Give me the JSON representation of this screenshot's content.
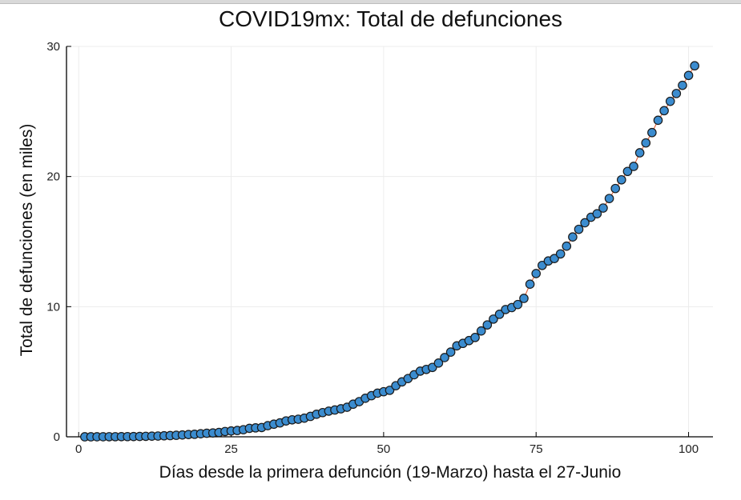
{
  "chart_data": {
    "type": "scatter",
    "title": "COVID19mx: Total de defunciones",
    "xlabel": "Días desde la primera defunción (19-Marzo) hasta el 27-Junio",
    "ylabel": "Total de defunciones (en miles)",
    "xlim": [
      -2,
      104
    ],
    "ylim": [
      0,
      30
    ],
    "xticks": [
      0,
      25,
      50,
      75,
      100
    ],
    "yticks": [
      0,
      10,
      20,
      30
    ],
    "grid": true,
    "legend": "none",
    "colors": {
      "marker_fill": "#3b8ccf",
      "marker_stroke": "#1a1a1a",
      "line": "#e26b45",
      "grid": "#ececec"
    },
    "series": [
      {
        "x": [
          1,
          2,
          3,
          4,
          5,
          6,
          7,
          8,
          9,
          10,
          11,
          12,
          13,
          14,
          15,
          16,
          17,
          18,
          19,
          20,
          21,
          22,
          23,
          24,
          25,
          26,
          27,
          28,
          29,
          30,
          31,
          32,
          33,
          34,
          35,
          36,
          37,
          38,
          39,
          40,
          41,
          42,
          43,
          44,
          45,
          46,
          47,
          48,
          49,
          50,
          51,
          52,
          53,
          54,
          55,
          56,
          57,
          58,
          59,
          60,
          61,
          62,
          63,
          64,
          65,
          66,
          67,
          68,
          69,
          70,
          71,
          72,
          73,
          74,
          75,
          76,
          77,
          78,
          79,
          80,
          81,
          82,
          83,
          84,
          85,
          86,
          87,
          88,
          89,
          90,
          91,
          92,
          93,
          94,
          95,
          96,
          97,
          98,
          99,
          100,
          101
        ],
        "y": [
          0.001,
          0.002,
          0.003,
          0.004,
          0.006,
          0.008,
          0.012,
          0.016,
          0.02,
          0.028,
          0.037,
          0.05,
          0.06,
          0.079,
          0.094,
          0.117,
          0.141,
          0.174,
          0.194,
          0.233,
          0.273,
          0.296,
          0.332,
          0.406,
          0.449,
          0.486,
          0.546,
          0.65,
          0.686,
          0.712,
          0.857,
          0.97,
          1.069,
          1.221,
          1.305,
          1.351,
          1.434,
          1.569,
          1.732,
          1.859,
          1.972,
          2.061,
          2.154,
          2.271,
          2.507,
          2.704,
          2.961,
          3.16,
          3.353,
          3.465,
          3.573,
          3.926,
          4.22,
          4.477,
          4.767,
          5.045,
          5.177,
          5.332,
          5.666,
          6.09,
          6.51,
          6.989,
          7.179,
          7.394,
          7.633,
          8.134,
          8.597,
          9.044,
          9.415,
          9.779,
          9.93,
          10.167,
          10.637,
          11.729,
          12.545,
          13.17,
          13.511,
          13.699,
          14.053,
          14.649,
          15.357,
          15.944,
          16.448,
          16.872,
          17.141,
          17.58,
          18.31,
          19.08,
          19.747,
          20.394,
          20.781,
          21.825,
          22.584,
          23.377,
          24.324,
          25.06,
          25.779,
          26.381,
          27.008,
          27.769,
          28.51
        ]
      }
    ]
  }
}
